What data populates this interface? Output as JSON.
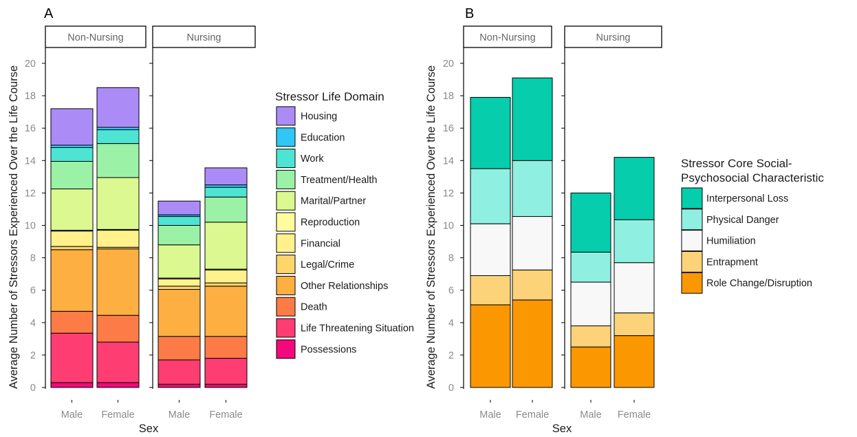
{
  "chart_data": [
    {
      "panel_label": "A",
      "type": "bar",
      "stacked": true,
      "facets": [
        "Non-Nursing",
        "Nursing"
      ],
      "categories": [
        "Male",
        "Female"
      ],
      "xlabel": "Sex",
      "ylabel": "Average Number of Stressors Experienced Over the Life Course",
      "ylim": [
        0,
        21
      ],
      "yticks": [
        "0",
        "2",
        "4",
        "6",
        "8",
        "10",
        "12",
        "14",
        "16",
        "18",
        "20"
      ],
      "legend_title": "Stressor Life Domain",
      "legend_position": "right",
      "series": [
        {
          "name": "Possessions",
          "color": "#f4087a",
          "values": {
            "Non-Nursing": [
              0.3,
              0.3
            ],
            "Nursing": [
              0.2,
              0.2
            ]
          }
        },
        {
          "name": "Life Threatening Situation",
          "color": "#fe3d73",
          "values": {
            "Non-Nursing": [
              3.05,
              2.5
            ],
            "Nursing": [
              1.5,
              1.6
            ]
          }
        },
        {
          "name": "Death",
          "color": "#fd7b46",
          "values": {
            "Non-Nursing": [
              1.35,
              1.65
            ],
            "Nursing": [
              1.45,
              1.35
            ]
          }
        },
        {
          "name": "Other Relationships",
          "color": "#fdb041",
          "values": {
            "Non-Nursing": [
              3.8,
              4.1
            ],
            "Nursing": [
              2.9,
              3.1
            ]
          }
        },
        {
          "name": "Legal/Crime",
          "color": "#fdd56b",
          "values": {
            "Non-Nursing": [
              0.2,
              0.1
            ],
            "Nursing": [
              0.2,
              0.2
            ]
          }
        },
        {
          "name": "Financial",
          "color": "#fff18c",
          "values": {
            "Non-Nursing": [
              0.95,
              1.05
            ],
            "Nursing": [
              0.45,
              0.8
            ]
          }
        },
        {
          "name": "Reproduction",
          "color": "#fffca0",
          "values": {
            "Non-Nursing": [
              0.05,
              0.05
            ],
            "Nursing": [
              0.05,
              0.05
            ]
          }
        },
        {
          "name": "Marital/Partner",
          "color": "#dbf990",
          "values": {
            "Non-Nursing": [
              2.55,
              3.2
            ],
            "Nursing": [
              2.05,
              2.9
            ]
          }
        },
        {
          "name": "Treatment/Health",
          "color": "#9bf1a6",
          "values": {
            "Non-Nursing": [
              1.7,
              2.1
            ],
            "Nursing": [
              1.2,
              1.55
            ]
          }
        },
        {
          "name": "Work",
          "color": "#4ee4d3",
          "values": {
            "Non-Nursing": [
              0.85,
              0.85
            ],
            "Nursing": [
              0.55,
              0.6
            ]
          }
        },
        {
          "name": "Education",
          "color": "#2fc7f5",
          "values": {
            "Non-Nursing": [
              0.15,
              0.15
            ],
            "Nursing": [
              0.1,
              0.15
            ]
          }
        },
        {
          "name": "Housing",
          "color": "#ab8cf7",
          "values": {
            "Non-Nursing": [
              2.25,
              2.45
            ],
            "Nursing": [
              0.85,
              1.05
            ]
          }
        }
      ]
    },
    {
      "panel_label": "B",
      "type": "bar",
      "stacked": true,
      "facets": [
        "Non-Nursing",
        "Nursing"
      ],
      "categories": [
        "Male",
        "Female"
      ],
      "xlabel": "Sex",
      "ylabel": "Average Number of Stressors Experienced Over the Life Course",
      "ylim": [
        0,
        21
      ],
      "yticks": [
        "0",
        "2",
        "4",
        "6",
        "8",
        "10",
        "12",
        "14",
        "16",
        "18",
        "20"
      ],
      "legend_title_lines": [
        "Stressor Core Social-",
        "Psychosocial Characteristic"
      ],
      "legend_position": "right",
      "series": [
        {
          "name": "Role Change/Disruption",
          "color": "#fb9700",
          "values": {
            "Non-Nursing": [
              5.1,
              5.4
            ],
            "Nursing": [
              2.5,
              3.2
            ]
          }
        },
        {
          "name": "Entrapment",
          "color": "#fdd37a",
          "values": {
            "Non-Nursing": [
              1.8,
              1.85
            ],
            "Nursing": [
              1.3,
              1.4
            ]
          }
        },
        {
          "name": "Humiliation",
          "color": "#f8f8f8",
          "values": {
            "Non-Nursing": [
              3.2,
              3.3
            ],
            "Nursing": [
              2.7,
              3.1
            ]
          }
        },
        {
          "name": "Physical Danger",
          "color": "#8ff0e2",
          "values": {
            "Non-Nursing": [
              3.4,
              3.45
            ],
            "Nursing": [
              1.85,
              2.65
            ]
          }
        },
        {
          "name": "Interpersonal Loss",
          "color": "#06cdab",
          "values": {
            "Non-Nursing": [
              4.4,
              5.1
            ],
            "Nursing": [
              3.65,
              3.85
            ]
          }
        }
      ]
    }
  ]
}
